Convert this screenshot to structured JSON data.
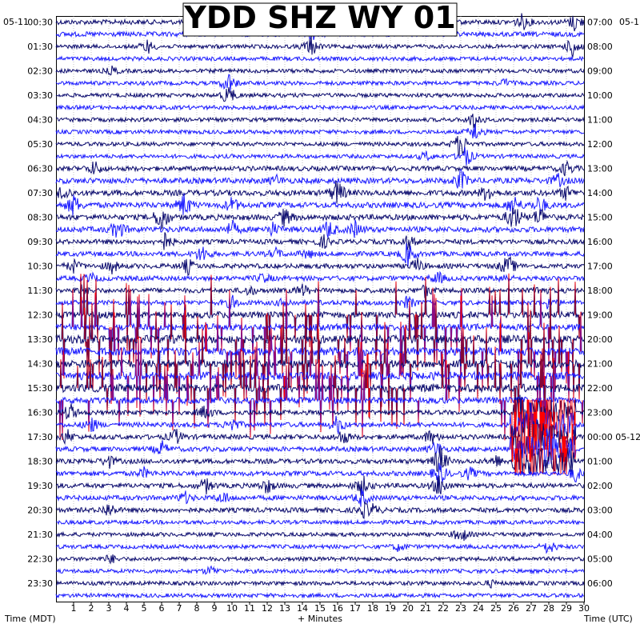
{
  "chart_data": {
    "type": "line",
    "title": "YDD SHZ WY 01",
    "xlabel": "+ Minutes",
    "ylabel_left": "Time (MDT)",
    "ylabel_right": "Time (UTC)",
    "xlim": [
      0,
      30
    ],
    "x_ticks": [
      "1",
      "2",
      "3",
      "4",
      "5",
      "6",
      "7",
      "8",
      "9",
      "10",
      "11",
      "12",
      "13",
      "14",
      "15",
      "16",
      "17",
      "18",
      "19",
      "20",
      "21",
      "22",
      "23",
      "24",
      "25",
      "26",
      "27",
      "28",
      "29",
      "30"
    ],
    "date_left": "05-11",
    "date_right": "05-1",
    "date_right_mid": "05-12",
    "left_labels": [
      "00:30",
      "01:30",
      "02:30",
      "03:30",
      "04:30",
      "05:30",
      "06:30",
      "07:30",
      "08:30",
      "09:30",
      "10:30",
      "11:30",
      "12:30",
      "13:30",
      "14:30",
      "15:30",
      "16:30",
      "17:30",
      "18:30",
      "19:30",
      "20:30",
      "21:30",
      "22:30",
      "23:30"
    ],
    "right_labels": [
      "07:00",
      "08:00",
      "09:00",
      "10:00",
      "11:00",
      "12:00",
      "13:00",
      "14:00",
      "15:00",
      "16:00",
      "17:00",
      "18:00",
      "19:00",
      "20:00",
      "21:00",
      "22:00",
      "23:00",
      "00:00",
      "01:00",
      "02:00",
      "03:00",
      "04:00",
      "05:00",
      "06:00"
    ],
    "series_colors": [
      "#0b0b6e",
      "#1a1aff"
    ],
    "clip_color": "#ff0000",
    "grid": true,
    "traces": [
      {
        "amp": 3,
        "events": [
          [
            26.5,
            10
          ],
          [
            29.5,
            12
          ]
        ]
      },
      {
        "amp": 3,
        "events": [
          [
            14.6,
            8
          ]
        ]
      },
      {
        "amp": 2.5,
        "events": [
          [
            5.2,
            9
          ],
          [
            14.5,
            14
          ],
          [
            29.4,
            16
          ]
        ]
      },
      {
        "amp": 2.5,
        "events": []
      },
      {
        "amp": 2.5,
        "events": [
          [
            3.2,
            5
          ]
        ]
      },
      {
        "amp": 2.5,
        "events": [
          [
            9.8,
            14
          ],
          [
            25.5,
            5
          ]
        ]
      },
      {
        "amp": 2.5,
        "events": [
          [
            9.8,
            14
          ]
        ]
      },
      {
        "amp": 2.5,
        "events": []
      },
      {
        "amp": 2.5,
        "events": [
          [
            23.8,
            14
          ]
        ]
      },
      {
        "amp": 2.5,
        "events": [
          [
            23.8,
            12
          ]
        ]
      },
      {
        "amp": 2.5,
        "events": [
          [
            23,
            20
          ]
        ]
      },
      {
        "amp": 2.5,
        "events": [
          [
            23.3,
            14
          ],
          [
            21,
            6
          ]
        ]
      },
      {
        "amp": 3,
        "events": [
          [
            2.2,
            10
          ],
          [
            29,
            10
          ]
        ]
      },
      {
        "amp": 3.5,
        "events": [
          [
            12.5,
            6
          ],
          [
            23,
            14
          ],
          [
            28.5,
            8
          ]
        ]
      },
      {
        "amp": 3.5,
        "events": [
          [
            0.4,
            12
          ],
          [
            16,
            18
          ],
          [
            24.5,
            12
          ],
          [
            29,
            8
          ]
        ]
      },
      {
        "amp": 3.5,
        "events": [
          [
            1,
            14
          ],
          [
            7.3,
            16
          ],
          [
            10,
            10
          ],
          [
            26,
            14
          ],
          [
            27.5,
            12
          ]
        ]
      },
      {
        "amp": 3.5,
        "events": [
          [
            6,
            20
          ],
          [
            13,
            12
          ],
          [
            26,
            20
          ],
          [
            27.5,
            14
          ]
        ]
      },
      {
        "amp": 3.5,
        "events": [
          [
            3.5,
            14
          ],
          [
            10,
            10
          ],
          [
            12.3,
            8
          ],
          [
            15.5,
            12
          ],
          [
            17,
            10
          ]
        ]
      },
      {
        "amp": 3,
        "events": [
          [
            6.2,
            12
          ],
          [
            15.2,
            8
          ],
          [
            20,
            10
          ]
        ]
      },
      {
        "amp": 3,
        "events": [
          [
            8.3,
            12
          ],
          [
            12.5,
            6
          ],
          [
            14.3,
            6
          ],
          [
            20,
            16
          ]
        ]
      },
      {
        "amp": 3,
        "events": [
          [
            1,
            8
          ],
          [
            3.2,
            8
          ],
          [
            7.5,
            10
          ],
          [
            20.5,
            10
          ],
          [
            25.5,
            6
          ],
          [
            25.8,
            8
          ]
        ]
      },
      {
        "amp": 3,
        "events": [
          [
            2,
            6
          ],
          [
            11.8,
            6
          ],
          [
            21.7,
            8
          ],
          [
            25.5,
            6
          ]
        ]
      },
      {
        "amp": 3,
        "events": [
          [
            1.5,
            6
          ],
          [
            11,
            6
          ],
          [
            14,
            8
          ],
          [
            21,
            8
          ],
          [
            27.5,
            6
          ]
        ]
      },
      {
        "amp": 3,
        "events": [
          [
            10,
            8
          ],
          [
            13,
            6
          ],
          [
            20,
            8
          ],
          [
            28,
            8
          ]
        ]
      },
      {
        "amp": 4,
        "events": [],
        "clip": true
      },
      {
        "amp": 4,
        "events": [],
        "clip": true
      },
      {
        "amp": 5,
        "events": [],
        "clip": true
      },
      {
        "amp": 5,
        "events": [],
        "clip": true
      },
      {
        "amp": 5,
        "events": [],
        "clip": true
      },
      {
        "amp": 5,
        "events": [],
        "clip": true
      },
      {
        "amp": 5,
        "events": [],
        "clip": true
      },
      {
        "amp": 4,
        "events": [],
        "clip": true
      },
      {
        "amp": 3,
        "events": [
          [
            0.8,
            12
          ],
          [
            8.5,
            10
          ],
          [
            26.5,
            14
          ]
        ],
        "clip_zone": [
          26,
          29.5
        ]
      },
      {
        "amp": 3,
        "events": [
          [
            2,
            10
          ],
          [
            10,
            10
          ],
          [
            16,
            12
          ],
          [
            27,
            16
          ]
        ],
        "clip_zone": [
          25.8,
          29.5
        ]
      },
      {
        "amp": 3,
        "events": [
          [
            0.6,
            10
          ],
          [
            6.8,
            10
          ],
          [
            16.3,
            10
          ],
          [
            21.3,
            10
          ],
          [
            27,
            18
          ]
        ],
        "clip_zone": [
          25.8,
          29.5
        ]
      },
      {
        "amp": 3,
        "events": [
          [
            6,
            10
          ],
          [
            21.6,
            10
          ],
          [
            28,
            14
          ]
        ],
        "clip_zone": [
          25.8,
          29.5
        ]
      },
      {
        "amp": 3,
        "events": [
          [
            3,
            8
          ],
          [
            21.8,
            22
          ],
          [
            25,
            8
          ]
        ],
        "clip_zone": [
          25.8,
          29.5
        ]
      },
      {
        "amp": 3,
        "events": [
          [
            5,
            6
          ],
          [
            21.8,
            16
          ],
          [
            23.5,
            8
          ],
          [
            29.5,
            10
          ]
        ]
      },
      {
        "amp": 3,
        "events": [
          [
            8.5,
            10
          ],
          [
            12,
            10
          ],
          [
            17.4,
            14
          ],
          [
            21.8,
            16
          ]
        ]
      },
      {
        "amp": 3,
        "events": [
          [
            7.3,
            8
          ],
          [
            9.5,
            8
          ],
          [
            17.4,
            12
          ]
        ]
      },
      {
        "amp": 3,
        "events": [
          [
            3,
            10
          ],
          [
            17.5,
            8
          ],
          [
            18,
            6
          ]
        ]
      },
      {
        "amp": 2.5,
        "events": []
      },
      {
        "amp": 2.5,
        "events": [
          [
            23,
            12
          ]
        ]
      },
      {
        "amp": 2.5,
        "events": [
          [
            19.5,
            6
          ],
          [
            28,
            10
          ]
        ]
      },
      {
        "amp": 2.5,
        "events": [
          [
            3.1,
            6
          ]
        ]
      },
      {
        "amp": 2.5,
        "events": [
          [
            8.8,
            6
          ]
        ]
      },
      {
        "amp": 2.5,
        "events": [
          [
            24.7,
            4
          ]
        ]
      },
      {
        "amp": 2.5,
        "events": []
      }
    ]
  }
}
